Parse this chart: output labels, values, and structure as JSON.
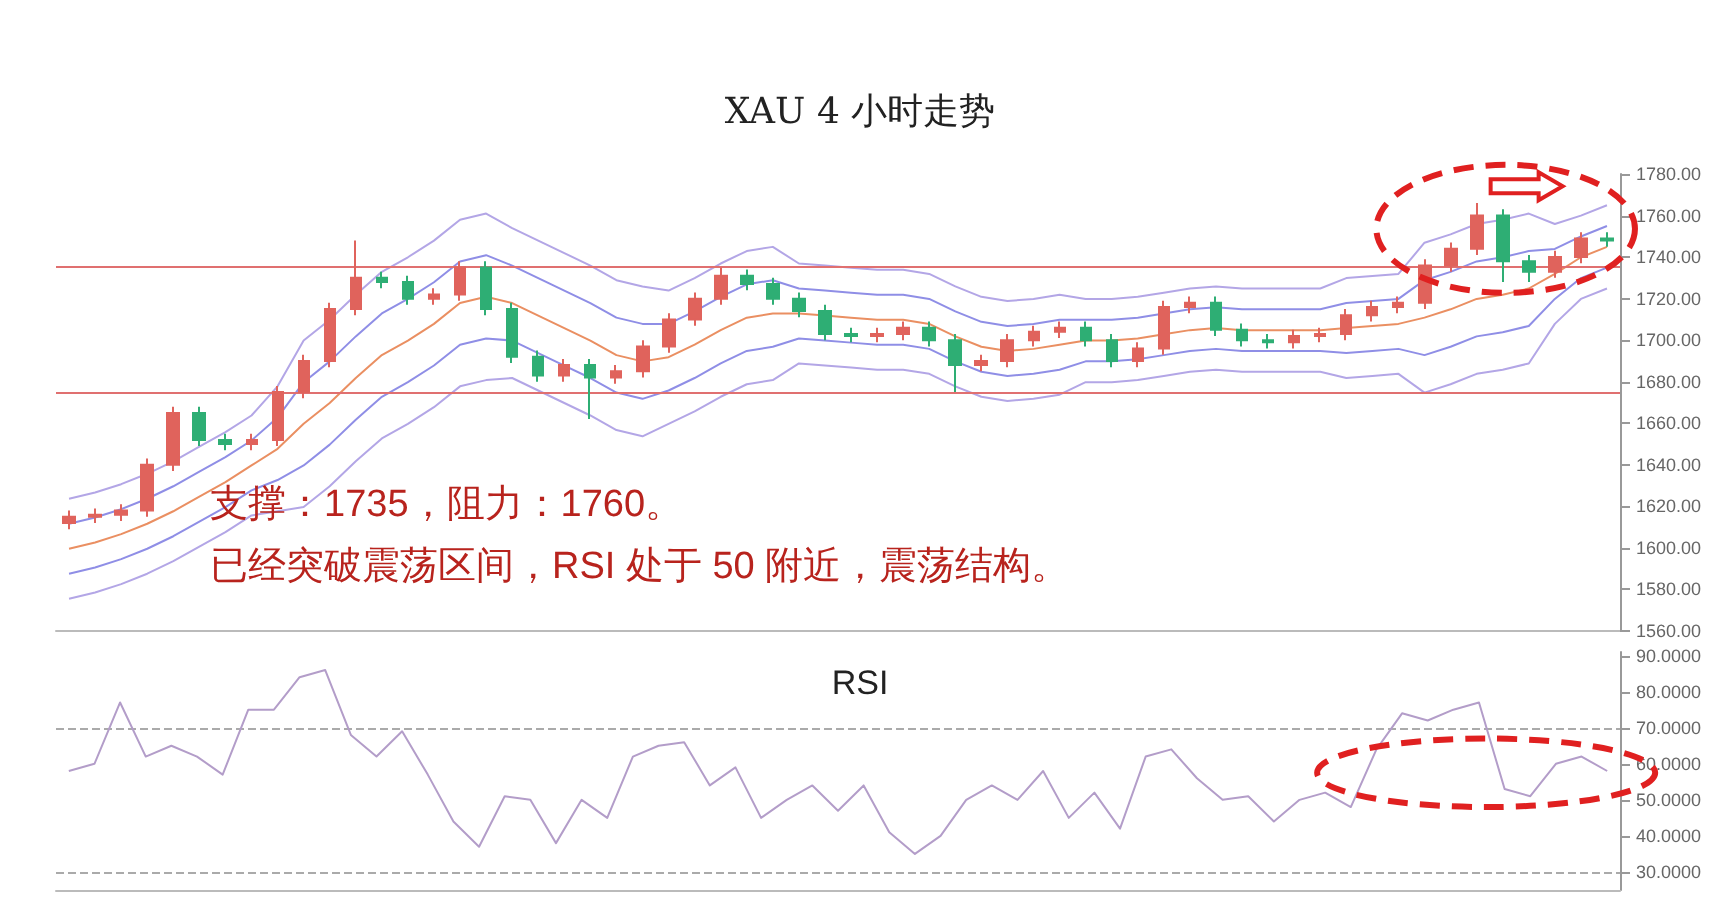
{
  "chart_data": [
    {
      "type": "candlestick",
      "title": "XAU 4 小时走势",
      "annotations": [
        "支撑：1735，阻力：1760。",
        "已经突破震荡区间，RSI 处于 50 附近，震荡结构。"
      ],
      "categories": [
        null,
        null,
        null,
        null,
        null,
        null,
        null,
        null,
        null,
        null,
        null,
        null,
        null,
        null,
        null,
        null,
        null,
        null,
        null,
        null,
        null,
        null,
        null,
        null,
        null,
        null,
        null,
        null,
        null,
        null,
        null,
        null,
        null,
        null,
        null,
        null,
        null,
        null,
        null,
        null,
        null,
        null,
        null,
        null,
        null,
        null,
        null,
        null,
        null,
        null,
        null,
        null,
        null,
        null,
        null,
        null,
        null,
        null,
        null,
        null
      ],
      "ohlc": [
        [
          1612,
          1618,
          1609,
          1615
        ],
        [
          1615,
          1619,
          1612,
          1616
        ],
        [
          1616,
          1621,
          1613,
          1618
        ],
        [
          1618,
          1643,
          1615,
          1640
        ],
        [
          1640,
          1668,
          1637,
          1665
        ],
        [
          1665,
          1668,
          1649,
          1652
        ],
        [
          1652,
          1655,
          1647,
          1650
        ],
        [
          1650,
          1655,
          1647,
          1652
        ],
        [
          1652,
          1678,
          1649,
          1675
        ],
        [
          1675,
          1693,
          1672,
          1690
        ],
        [
          1690,
          1718,
          1687,
          1715
        ],
        [
          1715,
          1748,
          1712,
          1730
        ],
        [
          1730,
          1733,
          1725,
          1728
        ],
        [
          1728,
          1731,
          1717,
          1720
        ],
        [
          1720,
          1725,
          1717,
          1722
        ],
        [
          1722,
          1738,
          1719,
          1735
        ],
        [
          1735,
          1738,
          1712,
          1715
        ],
        [
          1715,
          1718,
          1689,
          1692
        ],
        [
          1692,
          1695,
          1680,
          1683
        ],
        [
          1683,
          1691,
          1680,
          1688
        ],
        [
          1688,
          1691,
          1662,
          1682
        ],
        [
          1682,
          1688,
          1679,
          1685
        ],
        [
          1685,
          1700,
          1682,
          1697
        ],
        [
          1697,
          1713,
          1694,
          1710
        ],
        [
          1710,
          1723,
          1707,
          1720
        ],
        [
          1720,
          1735,
          1717,
          1731
        ],
        [
          1731,
          1734,
          1724,
          1727
        ],
        [
          1727,
          1730,
          1717,
          1720
        ],
        [
          1720,
          1723,
          1711,
          1714
        ],
        [
          1714,
          1717,
          1700,
          1703
        ],
        [
          1703,
          1706,
          1699,
          1702
        ],
        [
          1702,
          1706,
          1699,
          1703
        ],
        [
          1703,
          1709,
          1700,
          1706
        ],
        [
          1706,
          1709,
          1697,
          1700
        ],
        [
          1700,
          1703,
          1675,
          1688
        ],
        [
          1688,
          1693,
          1685,
          1690
        ],
        [
          1690,
          1703,
          1687,
          1700
        ],
        [
          1700,
          1707,
          1697,
          1704
        ],
        [
          1704,
          1709,
          1701,
          1706
        ],
        [
          1706,
          1709,
          1697,
          1700
        ],
        [
          1700,
          1703,
          1687,
          1690
        ],
        [
          1690,
          1699,
          1687,
          1696
        ],
        [
          1696,
          1719,
          1693,
          1716
        ],
        [
          1716,
          1721,
          1713,
          1718
        ],
        [
          1718,
          1721,
          1702,
          1705
        ],
        [
          1705,
          1708,
          1697,
          1700
        ],
        [
          1700,
          1703,
          1696,
          1699
        ],
        [
          1699,
          1705,
          1696,
          1702
        ],
        [
          1702,
          1706,
          1699,
          1703
        ],
        [
          1703,
          1715,
          1700,
          1712
        ],
        [
          1712,
          1719,
          1709,
          1716
        ],
        [
          1716,
          1721,
          1713,
          1718
        ],
        [
          1718,
          1739,
          1715,
          1736
        ],
        [
          1736,
          1747,
          1733,
          1744
        ],
        [
          1744,
          1766,
          1741,
          1760
        ],
        [
          1760,
          1763,
          1728,
          1738
        ],
        [
          1738,
          1741,
          1728,
          1733
        ],
        [
          1733,
          1743,
          1730,
          1740
        ],
        [
          1740,
          1752,
          1737,
          1749
        ],
        [
          1749,
          1752,
          1745,
          1748
        ]
      ],
      "colors": [
        "#e0635c",
        "#e0635c",
        "#e0635c",
        "#e0635c",
        "#e0635c",
        "#2eae74",
        "#2eae74",
        "#e0635c",
        "#e0635c",
        "#e0635c",
        "#e0635c",
        "#e0635c",
        "#2eae74",
        "#2eae74",
        "#e0635c",
        "#e0635c",
        "#2eae74",
        "#2eae74",
        "#2eae74",
        "#e0635c",
        "#2eae74",
        "#e0635c",
        "#e0635c",
        "#e0635c",
        "#e0635c",
        "#e0635c",
        "#2eae74",
        "#2eae74",
        "#2eae74",
        "#2eae74",
        "#2eae74",
        "#e0635c",
        "#e0635c",
        "#2eae74",
        "#2eae74",
        "#e0635c",
        "#e0635c",
        "#e0635c",
        "#e0635c",
        "#2eae74",
        "#2eae74",
        "#e0635c",
        "#e0635c",
        "#e0635c",
        "#2eae74",
        "#2eae74",
        "#2eae74",
        "#e0635c",
        "#e0635c",
        "#e0635c",
        "#e0635c",
        "#e0635c",
        "#e0635c",
        "#e0635c",
        "#e0635c",
        "#2eae74",
        "#2eae74",
        "#e0635c",
        "#e0635c",
        "#2eae74"
      ],
      "ylim": [
        1560,
        1780
      ],
      "yticks": [
        {
          "value": 1560,
          "label": "1560.00"
        },
        {
          "value": 1580,
          "label": "1580.00"
        },
        {
          "value": 1600,
          "label": "1600.00"
        },
        {
          "value": 1620,
          "label": "1620.00"
        },
        {
          "value": 1640,
          "label": "1640.00"
        },
        {
          "value": 1660,
          "label": "1660.00"
        },
        {
          "value": 1680,
          "label": "1680.00"
        },
        {
          "value": 1700,
          "label": "1700.00"
        },
        {
          "value": 1720,
          "label": "1720.00"
        },
        {
          "value": 1740,
          "label": "1740.00"
        },
        {
          "value": 1760,
          "label": "1760.00"
        },
        {
          "value": 1780,
          "label": "1780.00"
        }
      ],
      "ref_lines": [
        {
          "axis": "y",
          "value": 1735,
          "color": "#e07070",
          "line_style": "solid"
        },
        {
          "axis": "y",
          "value": 1675,
          "color": "#e07070",
          "line_style": "solid"
        }
      ],
      "tick_labels": "y",
      "grid": false
    },
    {
      "type": "line",
      "categories": [
        null,
        null,
        null,
        null,
        null,
        null,
        null,
        null,
        null,
        null,
        null,
        null,
        null,
        null,
        null,
        null,
        null,
        null,
        null,
        null,
        null,
        null,
        null,
        null,
        null,
        null,
        null,
        null,
        null,
        null,
        null,
        null,
        null,
        null,
        null,
        null,
        null,
        null,
        null,
        null,
        null,
        null,
        null,
        null,
        null,
        null,
        null,
        null,
        null,
        null,
        null,
        null,
        null,
        null,
        null,
        null,
        null,
        null,
        null,
        null
      ],
      "series": [
        {
          "color": "#ea8f62",
          "values": [
            1600,
            1603,
            1607,
            1612,
            1618,
            1625,
            1632,
            1640,
            1648,
            1660,
            1670,
            1682,
            1693,
            1700,
            1708,
            1718,
            1721,
            1718,
            1712,
            1706,
            1700,
            1693,
            1690,
            1692,
            1698,
            1705,
            1711,
            1713,
            1713,
            1712,
            1711,
            1710,
            1710,
            1708,
            1702,
            1697,
            1695,
            1696,
            1698,
            1700,
            1700,
            1701,
            1703,
            1705,
            1706,
            1705,
            1705,
            1705,
            1705,
            1706,
            1707,
            1708,
            1711,
            1715,
            1720,
            1722,
            1725,
            1732,
            1740,
            1745
          ]
        },
        {
          "color": "#8f8ee6",
          "values": [
            1612,
            1615,
            1619,
            1624,
            1630,
            1637,
            1644,
            1652,
            1663,
            1680,
            1690,
            1702,
            1713,
            1720,
            1728,
            1738,
            1741,
            1736,
            1730,
            1724,
            1718,
            1711,
            1708,
            1708,
            1714,
            1721,
            1727,
            1729,
            1725,
            1724,
            1723,
            1722,
            1722,
            1720,
            1714,
            1709,
            1707,
            1708,
            1710,
            1710,
            1710,
            1711,
            1713,
            1715,
            1716,
            1715,
            1715,
            1715,
            1715,
            1718,
            1719,
            1720,
            1729,
            1733,
            1738,
            1740,
            1743,
            1744,
            1750,
            1755
          ]
        },
        {
          "color": "#8f8ee6",
          "values": [
            1588,
            1591,
            1595,
            1600,
            1606,
            1613,
            1620,
            1628,
            1633,
            1640,
            1650,
            1662,
            1673,
            1680,
            1688,
            1698,
            1701,
            1700,
            1694,
            1688,
            1682,
            1675,
            1672,
            1676,
            1682,
            1689,
            1695,
            1697,
            1701,
            1700,
            1699,
            1698,
            1698,
            1696,
            1690,
            1685,
            1683,
            1684,
            1686,
            1690,
            1690,
            1691,
            1693,
            1695,
            1696,
            1695,
            1695,
            1695,
            1695,
            1694,
            1695,
            1696,
            1693,
            1697,
            1702,
            1704,
            1707,
            1720,
            1730,
            1735
          ]
        },
        {
          "color": "#b3a6e6",
          "values": [
            1624,
            1627,
            1631,
            1636,
            1642,
            1649,
            1656,
            1664,
            1678,
            1700,
            1710,
            1722,
            1733,
            1740,
            1748,
            1758,
            1761,
            1754,
            1748,
            1742,
            1736,
            1729,
            1726,
            1724,
            1730,
            1737,
            1743,
            1745,
            1737,
            1736,
            1735,
            1734,
            1734,
            1732,
            1726,
            1721,
            1719,
            1720,
            1722,
            1720,
            1720,
            1721,
            1723,
            1725,
            1726,
            1725,
            1725,
            1725,
            1725,
            1730,
            1731,
            1732,
            1747,
            1751,
            1756,
            1758,
            1761,
            1756,
            1760,
            1765
          ]
        },
        {
          "color": "#b3a6e6",
          "values": [
            1576,
            1579,
            1583,
            1588,
            1594,
            1601,
            1608,
            1616,
            1618,
            1620,
            1630,
            1642,
            1653,
            1660,
            1668,
            1678,
            1681,
            1682,
            1676,
            1670,
            1664,
            1657,
            1654,
            1660,
            1666,
            1673,
            1679,
            1681,
            1689,
            1688,
            1687,
            1686,
            1686,
            1684,
            1678,
            1673,
            1671,
            1672,
            1674,
            1680,
            1680,
            1681,
            1683,
            1685,
            1686,
            1685,
            1685,
            1685,
            1685,
            1682,
            1683,
            1684,
            1675,
            1679,
            1684,
            1686,
            1689,
            1708,
            1720,
            1725
          ]
        }
      ],
      "ylim": [
        1560,
        1780
      ],
      "marker": "none",
      "tick_labels": false,
      "grid": false
    },
    {
      "type": "line",
      "title": "RSI",
      "categories": [
        null,
        null,
        null,
        null,
        null,
        null,
        null,
        null,
        null,
        null,
        null,
        null,
        null,
        null,
        null,
        null,
        null,
        null,
        null,
        null,
        null,
        null,
        null,
        null,
        null,
        null,
        null,
        null,
        null,
        null,
        null,
        null,
        null,
        null,
        null,
        null,
        null,
        null,
        null,
        null,
        null,
        null,
        null,
        null,
        null,
        null,
        null,
        null,
        null,
        null,
        null,
        null,
        null,
        null,
        null,
        null,
        null,
        null,
        null,
        null,
        null
      ],
      "series": [
        {
          "color": "#b39dc9",
          "values": [
            58,
            60,
            77,
            62,
            65,
            62,
            57,
            75,
            75,
            84,
            86,
            68,
            62,
            69,
            57,
            44,
            37,
            51,
            50,
            38,
            50,
            45,
            62,
            65,
            66,
            54,
            59,
            45,
            50,
            54,
            47,
            54,
            41,
            35,
            40,
            50,
            54,
            50,
            58,
            45,
            52,
            42,
            62,
            64,
            56,
            50,
            51,
            44,
            50,
            52,
            48,
            64,
            74,
            72,
            75,
            77,
            53,
            51,
            60,
            62,
            58
          ]
        }
      ],
      "ylim": [
        25,
        91
      ],
      "yticks": [
        {
          "value": 30,
          "label": "30.0000"
        },
        {
          "value": 40,
          "label": "40.0000"
        },
        {
          "value": 50,
          "label": "50.0000"
        },
        {
          "value": 60,
          "label": "60.0000"
        },
        {
          "value": 70,
          "label": "70.0000"
        },
        {
          "value": 80,
          "label": "80.0000"
        },
        {
          "value": 90,
          "label": "90.0000"
        }
      ],
      "ref_lines": [
        {
          "axis": "y",
          "value": 70,
          "color": "#aaaaaa",
          "line_style": "dashed"
        },
        {
          "axis": "y",
          "value": 30,
          "color": "#aaaaaa",
          "line_style": "dashed"
        }
      ],
      "marker": "none",
      "tick_labels": "y",
      "grid": false
    }
  ]
}
